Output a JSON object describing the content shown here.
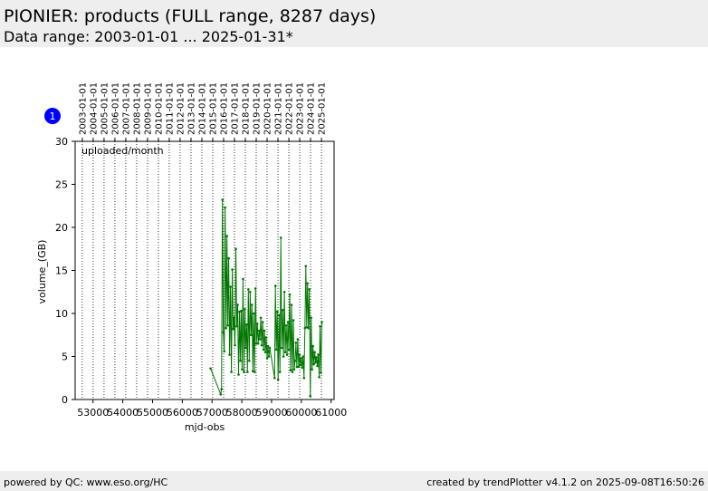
{
  "header": {
    "title": "PIONIER: products (FULL range, 8287 days)",
    "subtitle": "Data range: 2003-01-01 ... 2025-01-31*"
  },
  "footer": {
    "left": "powered by QC: www.eso.org/HC",
    "right": "created by trendPlotter v4.1.2 on 2025-09-08T16:50:26"
  },
  "badge": {
    "label": "1",
    "color": "#0000ff"
  },
  "colors": {
    "series": "#007700",
    "grid": "#000000"
  },
  "chart_data": {
    "type": "line",
    "annotation": "uploaded/month",
    "xlabel": "mjd-obs",
    "ylabel": "volume_(GB)",
    "xlim": [
      52400,
      61100
    ],
    "ylim": [
      0,
      30
    ],
    "x_ticks": [
      53000,
      54000,
      55000,
      56000,
      57000,
      58000,
      59000,
      60000,
      61000
    ],
    "x_tick_labels": [
      "53000",
      "54000",
      "55000",
      "56000",
      "57000",
      "58000",
      "59000",
      "60000",
      "61000"
    ],
    "y_ticks": [
      0,
      5,
      10,
      15,
      20,
      25,
      30
    ],
    "y_tick_labels": [
      "0",
      "5",
      "10",
      "15",
      "20",
      "25",
      "30"
    ],
    "top_axis_dates": [
      "2003-01-01",
      "2004-01-01",
      "2005-01-01",
      "2006-01-01",
      "2007-01-01",
      "2008-01-01",
      "2009-01-01",
      "2010-01-01",
      "2011-01-01",
      "2012-01-01",
      "2013-01-01",
      "2014-01-01",
      "2015-01-01",
      "2016-01-01",
      "2017-01-01",
      "2018-01-01",
      "2019-01-01",
      "2020-01-01",
      "2021-01-01",
      "2022-01-01",
      "2023-01-01",
      "2024-01-01",
      "2025-01-01"
    ],
    "top_axis_mjd": [
      52640,
      53005,
      53371,
      53736,
      54101,
      54466,
      54832,
      55197,
      55562,
      55927,
      56293,
      56658,
      57023,
      57388,
      57754,
      58119,
      58484,
      58849,
      59215,
      59580,
      59945,
      60310,
      60676
    ],
    "series": [
      {
        "x": [
          56950,
          57290,
          57320,
          57350,
          57380,
          57410,
          57440,
          57470,
          57500,
          57530,
          57560,
          57590,
          57620,
          57650,
          57680,
          57710,
          57740,
          57770,
          57800,
          57830,
          57860,
          57890,
          57920,
          57950,
          57980,
          58010,
          58040,
          58070,
          58100,
          58130,
          58160,
          58190,
          58220,
          58250,
          58280,
          58310,
          58340,
          58370,
          58400,
          58430,
          58460,
          58490,
          58520,
          58550,
          58580,
          58610,
          58640,
          58670,
          58700,
          58730,
          58760,
          58790,
          58820,
          58850,
          58880,
          58910,
          58940,
          59100,
          59130,
          59160,
          59190,
          59220,
          59250,
          59280,
          59310,
          59340,
          59370,
          59400,
          59430,
          59460,
          59490,
          59520,
          59550,
          59580,
          59610,
          59640,
          59670,
          59700,
          59730,
          59760,
          59790,
          59820,
          59850,
          59880,
          59910,
          59940,
          59970,
          60000,
          60030,
          60060,
          60090,
          60120,
          60150,
          60180,
          60210,
          60240,
          60270,
          60300,
          60330,
          60360,
          60390,
          60420,
          60450,
          60480,
          60510,
          60540,
          60570,
          60600,
          60630,
          60660,
          60690
        ],
        "y": [
          3.6,
          0.6,
          1.2,
          23.2,
          7.8,
          5.6,
          22.3,
          8.3,
          19.0,
          8.6,
          16.4,
          5.2,
          13.1,
          3.2,
          15.1,
          8.2,
          9.5,
          6.3,
          17.5,
          8.5,
          11.0,
          2.9,
          10.2,
          4.5,
          10.3,
          3.5,
          14.0,
          3.2,
          10.5,
          6.0,
          8.7,
          3.2,
          12.8,
          4.5,
          12.5,
          7.5,
          11.0,
          3.3,
          10.0,
          3.2,
          12.9,
          6.5,
          8.8,
          6.5,
          8.0,
          7.0,
          9.5,
          6.3,
          9.0,
          5.8,
          8.0,
          5.5,
          7.2,
          4.8,
          6.2,
          5.0,
          6.0,
          2.5,
          13.2,
          5.8,
          10.2,
          2.3,
          9.8,
          3.2,
          18.8,
          6.0,
          10.4,
          5.0,
          12.5,
          5.5,
          8.6,
          5.2,
          9.0,
          5.8,
          12.2,
          3.4,
          11.0,
          3.2,
          9.2,
          3.5,
          4.5,
          6.6,
          3.8,
          7.0,
          3.8,
          5.2,
          4.0,
          4.8,
          3.7,
          5.0,
          2.5,
          8.3,
          15.5,
          8.4,
          13.5,
          8.3,
          12.8,
          0.4,
          9.5,
          3.5,
          6.2,
          4.1,
          5.5,
          4.3,
          4.9,
          3.9,
          5.2,
          2.6,
          8.5,
          3.1,
          9.0
        ]
      }
    ]
  }
}
